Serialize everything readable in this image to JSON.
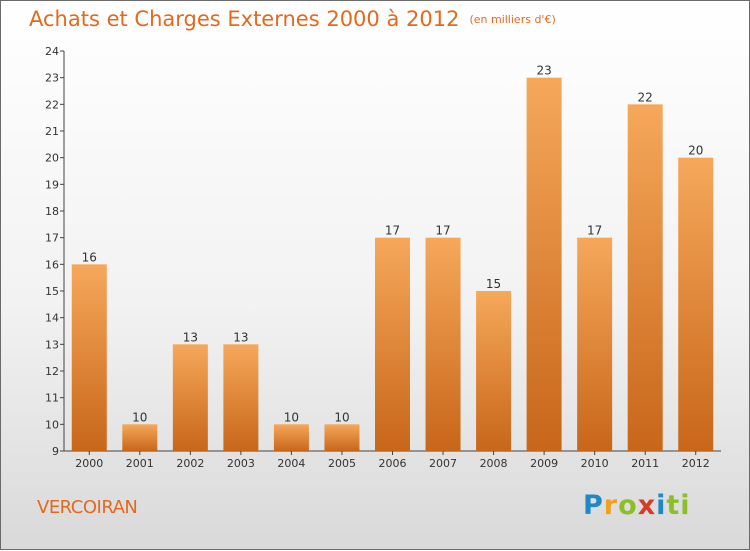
{
  "header": {
    "title": "Achats et Charges Externes 2000 à 2012",
    "unit": "(en milliers d'€)"
  },
  "footer": {
    "city": "VERCOIRAN",
    "logo_letters": [
      "P",
      "r",
      "o",
      "x",
      "i",
      "ti"
    ]
  },
  "colors": {
    "bar_light": "#f6a85a",
    "bar_dark": "#c8661a",
    "accent": "#e26a1f"
  },
  "chart_data": {
    "type": "bar",
    "categories": [
      "2000",
      "2001",
      "2002",
      "2003",
      "2004",
      "2005",
      "2006",
      "2007",
      "2008",
      "2009",
      "2010",
      "2011",
      "2012"
    ],
    "values": [
      16,
      10,
      13,
      13,
      10,
      10,
      17,
      17,
      15,
      23,
      17,
      22,
      20
    ],
    "ylim": [
      9,
      24
    ],
    "yticks": [
      9,
      10,
      11,
      12,
      13,
      14,
      15,
      16,
      17,
      18,
      19,
      20,
      21,
      22,
      23,
      24
    ],
    "grid": false,
    "data_labels": true
  }
}
